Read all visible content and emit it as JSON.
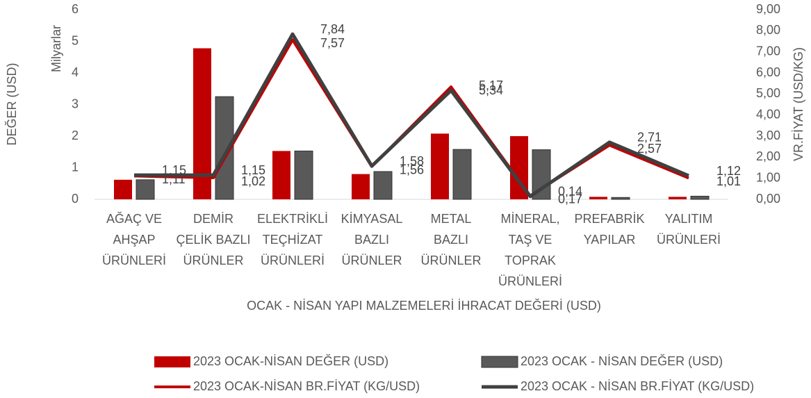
{
  "chart_data": {
    "type": "bar",
    "xlabel": "OCAK - NİSAN YAPI MALZEMELERİ İHRACAT DEĞERİ (USD)",
    "ylabel": "DEĞER (USD)",
    "yunit": "Milyarlar",
    "y2label": "VR.FİYAT (USD/KG)",
    "categories": [
      [
        "AĞAÇ VE",
        "AHŞAP",
        "ÜRÜNLERİ"
      ],
      [
        "DEMİR",
        "ÇELİK BAZLI",
        "ÜRÜNLER"
      ],
      [
        "ELEKTRİKLİ",
        "TEÇHİZAT",
        "ÜRÜNLERİ"
      ],
      [
        "KİMYASAL",
        "BAZLI",
        "ÜRÜNLER"
      ],
      [
        "METAL",
        "BAZLI",
        "ÜRÜNLER"
      ],
      [
        "MİNERAL,",
        "TAŞ VE",
        "TOPRAK",
        "ÜRÜNLERİ"
      ],
      [
        "PREFABRİK",
        "YAPILAR"
      ],
      [
        "YALITIM",
        "ÜRÜNLERİ"
      ]
    ],
    "ylim": [
      0,
      6
    ],
    "yticks": [
      0,
      1,
      2,
      3,
      4,
      5,
      6
    ],
    "y2lim": [
      0,
      9
    ],
    "y2ticks": [
      {
        "value": 0,
        "label": "0,00"
      },
      {
        "value": 1,
        "label": "1,00"
      },
      {
        "value": 2,
        "label": "2,00"
      },
      {
        "value": 3,
        "label": "3,00"
      },
      {
        "value": 4,
        "label": "4,00"
      },
      {
        "value": 5,
        "label": "5,00"
      },
      {
        "value": 6,
        "label": "6,00"
      },
      {
        "value": 7,
        "label": "7,00"
      },
      {
        "value": 8,
        "label": "8,00"
      },
      {
        "value": 9,
        "label": "9,00"
      }
    ],
    "legend": "bottom",
    "series": [
      {
        "name": "2023 OCAK-NİSAN DEĞER (USD)",
        "type": "bar",
        "color": "#c00000",
        "values": [
          0.62,
          4.78,
          1.53,
          0.8,
          2.08,
          2.0,
          0.08,
          0.08
        ]
      },
      {
        "name": "2023 OCAK - NİSAN DEĞER (USD)",
        "type": "bar",
        "color": "#595959",
        "values": [
          0.62,
          3.25,
          1.53,
          0.88,
          1.58,
          1.57,
          0.06,
          0.1
        ]
      },
      {
        "name": "2023 OCAK-NİSAN BR.FİYAT (KG/USD)",
        "type": "line",
        "axis": "y2",
        "color": "#c00000",
        "values": [
          1.11,
          1.02,
          7.57,
          1.56,
          5.34,
          0.17,
          2.57,
          1.01
        ],
        "value_labels": [
          "1,11",
          "1,02",
          "7,57",
          "1,56",
          "5,34",
          "0,17",
          "2,57",
          "1,01"
        ]
      },
      {
        "name": "2023 OCAK - NİSAN BR.FİYAT (KG/USD)",
        "type": "line",
        "axis": "y2",
        "color": "#404040",
        "values": [
          1.15,
          1.15,
          7.84,
          1.58,
          5.17,
          0.14,
          2.71,
          1.12
        ],
        "value_labels": [
          "1,15",
          "1,15",
          "7,84",
          "1,58",
          "5,17",
          "0,14",
          "2,71",
          "1,12"
        ]
      }
    ]
  }
}
